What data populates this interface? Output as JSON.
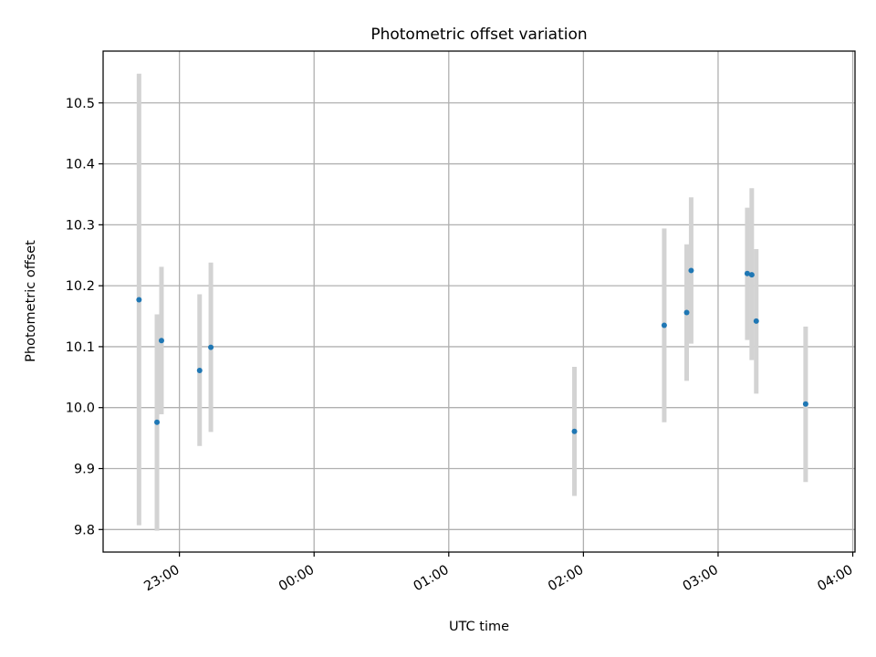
{
  "chart_data": {
    "type": "scatter",
    "title": "Photometric offset variation",
    "xlabel": "UTC time",
    "ylabel": "Photometric offset",
    "x_ticks": [
      "23:00",
      "00:00",
      "01:00",
      "02:00",
      "03:00",
      "04:00"
    ],
    "y_ticks": [
      "9.8",
      "9.9",
      "10.0",
      "10.1",
      "10.2",
      "10.3",
      "10.4",
      "10.5"
    ],
    "xlim": [
      "22:26",
      "04:01"
    ],
    "ylim": [
      9.763,
      10.585
    ],
    "grid": true,
    "legend": false,
    "marker_color": "#1f77b4",
    "errorbar_color": "#d3d3d3",
    "points": [
      {
        "x": "22:42",
        "y": 10.177,
        "err_low": 9.807,
        "err_high": 10.548
      },
      {
        "x": "22:50",
        "y": 9.976,
        "err_low": 9.798,
        "err_high": 10.153
      },
      {
        "x": "22:52",
        "y": 10.11,
        "err_low": 9.989,
        "err_high": 10.231
      },
      {
        "x": "23:09",
        "y": 10.061,
        "err_low": 9.937,
        "err_high": 10.186
      },
      {
        "x": "23:14",
        "y": 10.099,
        "err_low": 9.96,
        "err_high": 10.238
      },
      {
        "x": "01:56",
        "y": 9.961,
        "err_low": 9.855,
        "err_high": 10.067
      },
      {
        "x": "02:36",
        "y": 10.135,
        "err_low": 9.976,
        "err_high": 10.294
      },
      {
        "x": "02:46",
        "y": 10.156,
        "err_low": 10.044,
        "err_high": 10.268
      },
      {
        "x": "02:48",
        "y": 10.225,
        "err_low": 10.105,
        "err_high": 10.345
      },
      {
        "x": "03:13",
        "y": 10.22,
        "err_low": 10.111,
        "err_high": 10.328
      },
      {
        "x": "03:15",
        "y": 10.218,
        "err_low": 10.078,
        "err_high": 10.36
      },
      {
        "x": "03:17",
        "y": 10.142,
        "err_low": 10.023,
        "err_high": 10.26
      },
      {
        "x": "03:39",
        "y": 10.006,
        "err_low": 9.878,
        "err_high": 10.133
      }
    ]
  }
}
